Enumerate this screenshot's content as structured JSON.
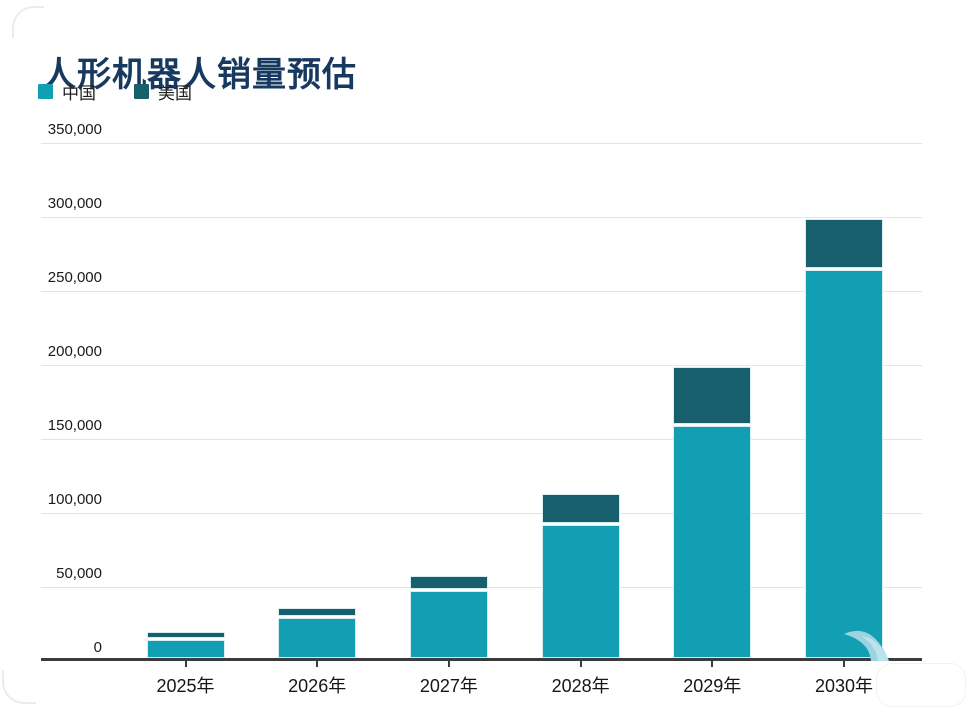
{
  "title": "人形机器人销量预估",
  "colors": {
    "china": "#129fb4",
    "usa": "#175f6d",
    "title": "#18395f",
    "axis": "#3b3b3b",
    "gridline": "#e4e4e4",
    "bar_edge": "#d6edf2",
    "watermark": "#9dd2e0"
  },
  "legend": {
    "items": [
      {
        "label": "中国",
        "color": "#129fb4"
      },
      {
        "label": "美国",
        "color": "#175f6d"
      }
    ]
  },
  "chart_data": {
    "type": "bar",
    "stacked": true,
    "title": "人形机器人销量预估",
    "categories": [
      "2025年",
      "2026年",
      "2027年",
      "2028年",
      "2029年",
      "2030年"
    ],
    "series": [
      {
        "name": "中国",
        "color": "#129fb4",
        "values": [
          12500,
          27000,
          45000,
          90000,
          157000,
          262000
        ]
      },
      {
        "name": "美国",
        "color": "#175f6d",
        "values": [
          3500,
          5500,
          9000,
          19500,
          38000,
          33000
        ]
      }
    ],
    "totals": [
      16000,
      32500,
      54000,
      109500,
      195000,
      295000
    ],
    "ylim": [
      0,
      350000
    ],
    "y_ticks": [
      0,
      50000,
      100000,
      150000,
      200000,
      250000,
      300000,
      350000
    ],
    "y_tick_labels": [
      "0",
      "50,000",
      "100,000",
      "150,000",
      "200,000",
      "250,000",
      "300,000",
      "350,000"
    ],
    "grid": true,
    "legend_position": "top-left",
    "xlabel": "",
    "ylabel": ""
  }
}
